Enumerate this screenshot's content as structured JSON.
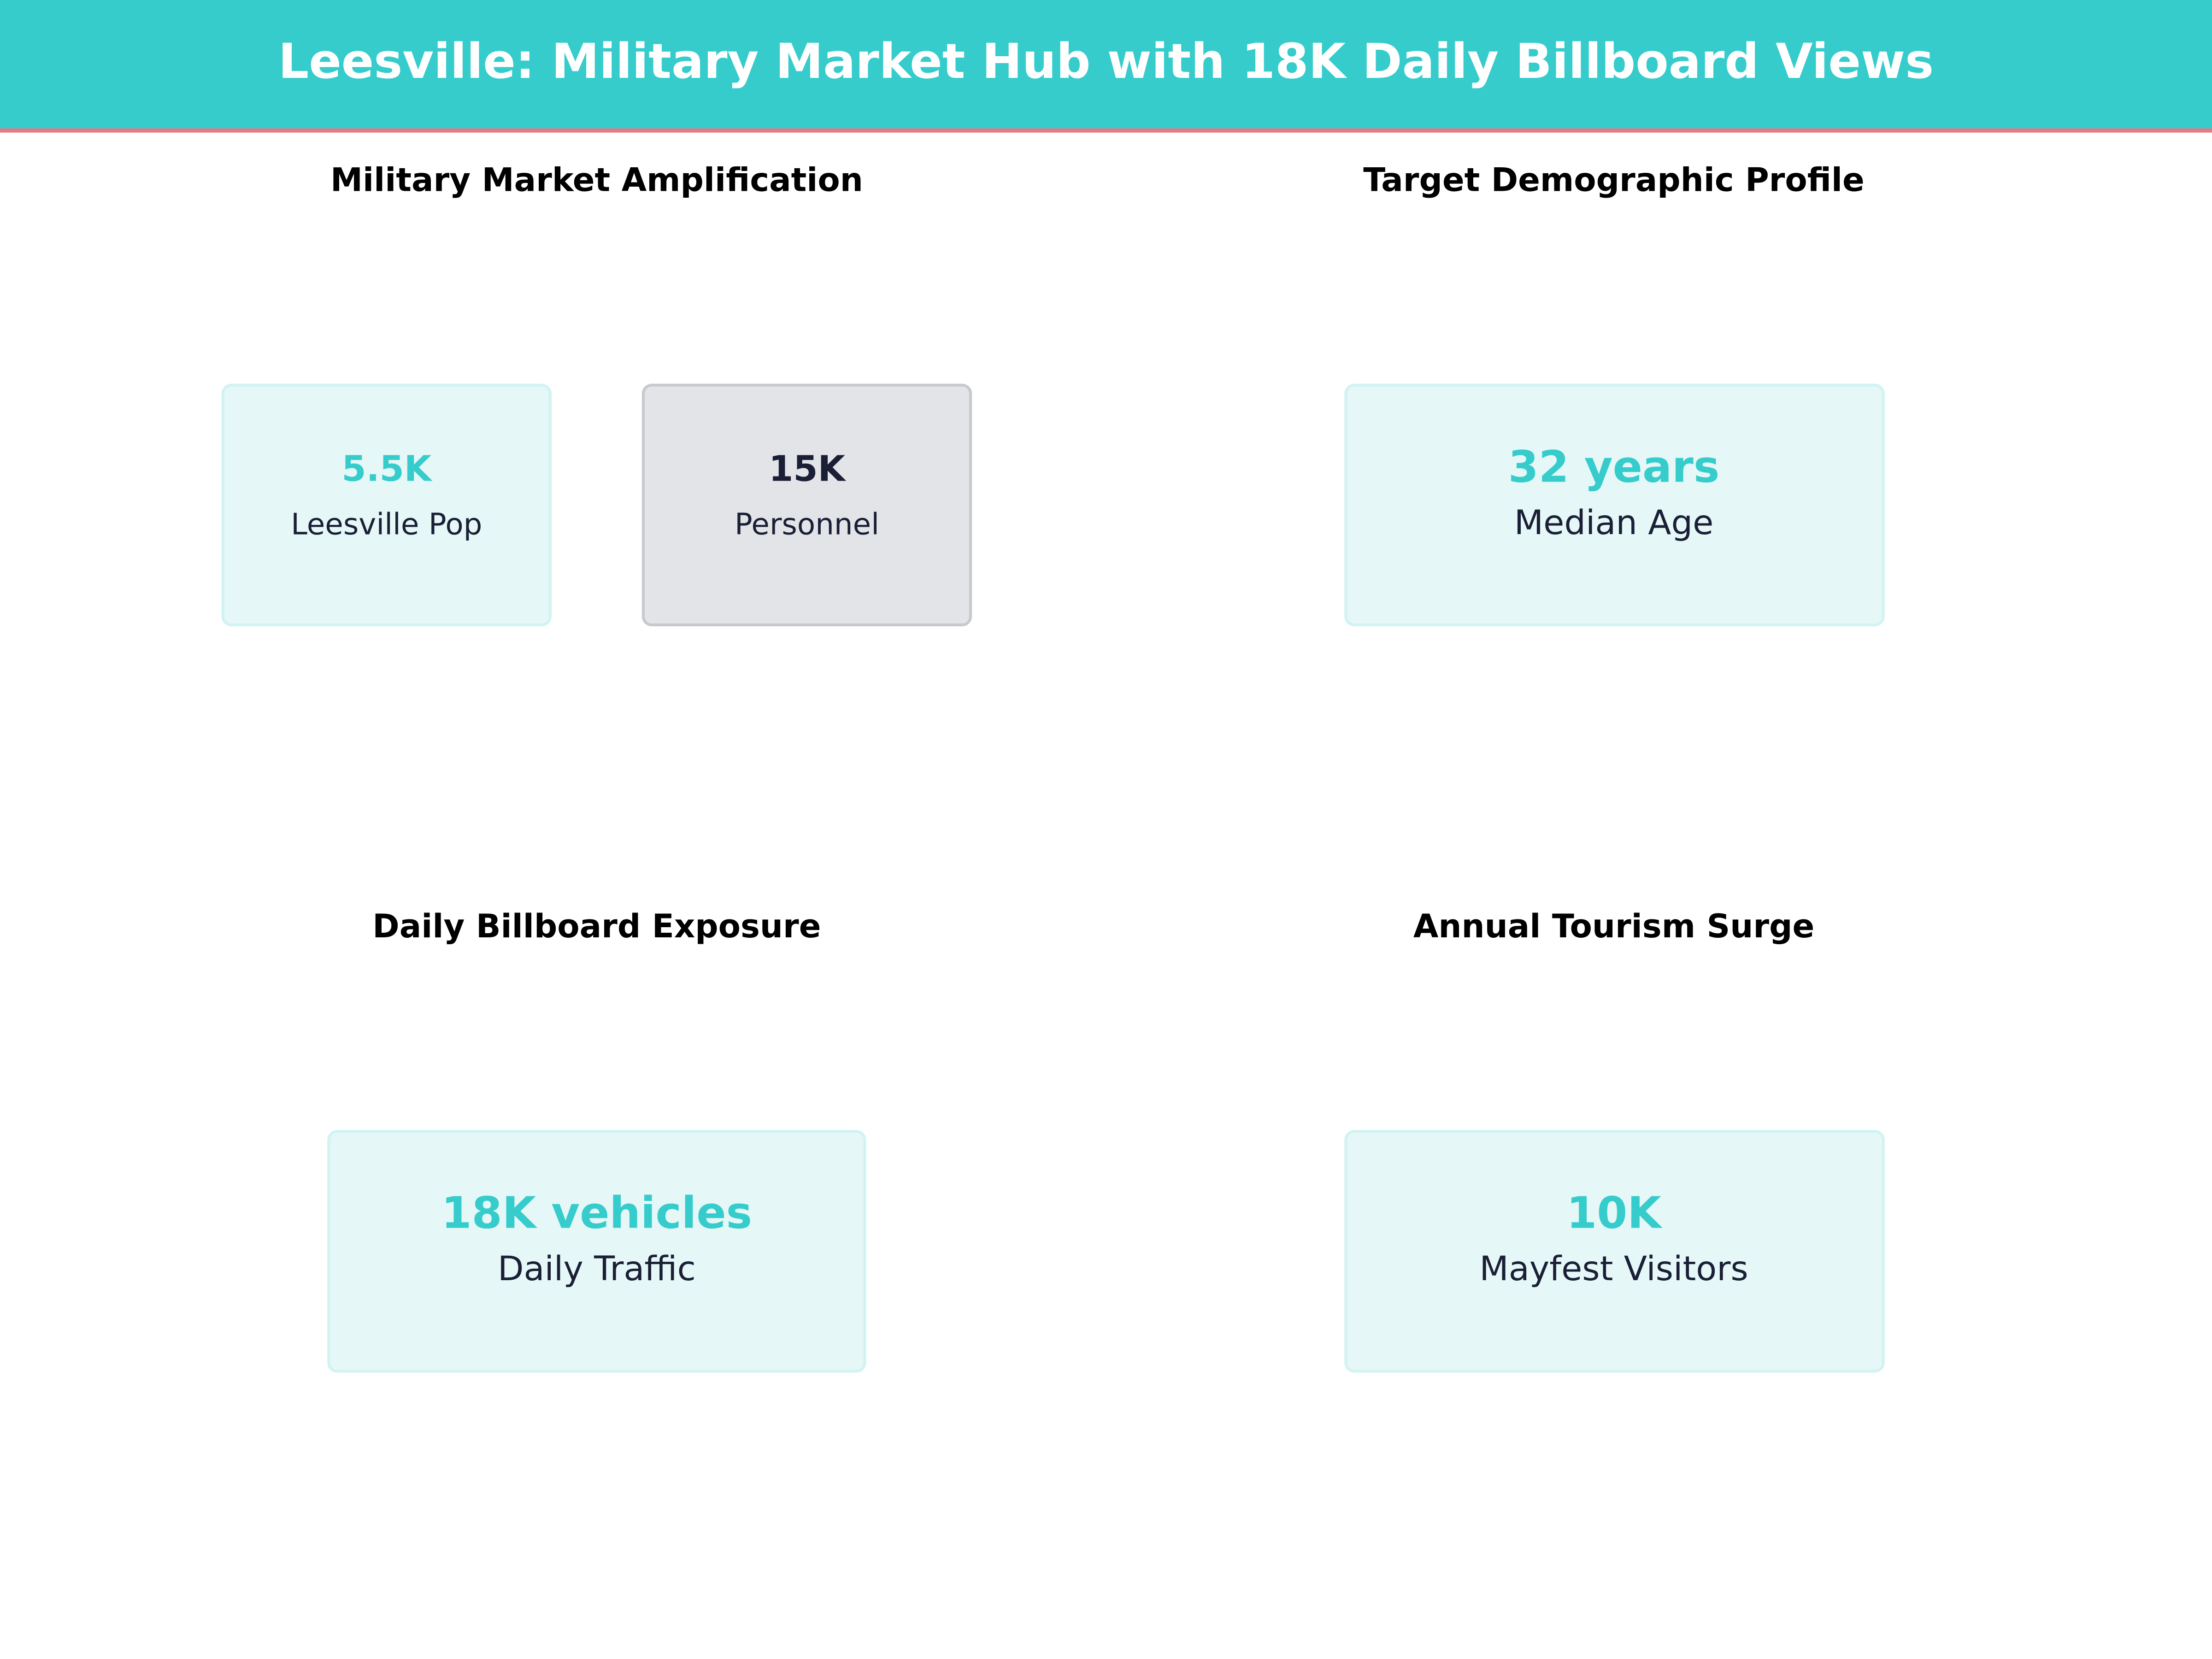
{
  "header": {
    "title": "Leesville: Military Market Hub with 18K Daily Billboard Views"
  },
  "panels": [
    {
      "title": "Military Market Amplification",
      "cards": [
        {
          "value": "5.5K",
          "label": "Leesville Pop"
        },
        {
          "value": "15K",
          "label": "Personnel"
        }
      ]
    },
    {
      "title": "Target Demographic Profile",
      "cards": [
        {
          "value": "32 years",
          "label": "Median Age"
        }
      ]
    },
    {
      "title": "Daily Billboard Exposure",
      "cards": [
        {
          "value": "18K vehicles",
          "label": "Daily Traffic"
        }
      ]
    },
    {
      "title": "Annual Tourism Surge",
      "cards": [
        {
          "value": "10K",
          "label": "Mayfest Visitors"
        }
      ]
    }
  ]
}
